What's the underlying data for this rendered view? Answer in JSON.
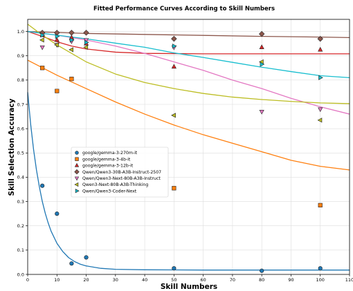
{
  "chart_data": {
    "type": "scatter",
    "title": "Fitted Performance Curves According to Skill Numbers",
    "xlabel": "Skill Numbers",
    "ylabel": "Skill Selection Accuracy",
    "xlim": [
      0,
      110
    ],
    "ylim": [
      0.0,
      1.05
    ],
    "xticks": [
      0,
      10,
      20,
      30,
      40,
      50,
      60,
      70,
      80,
      90,
      100,
      110
    ],
    "yticks": [
      0.0,
      0.1,
      0.2,
      0.3,
      0.4,
      0.5,
      0.6,
      0.7,
      0.8,
      0.9,
      1.0
    ],
    "grid": true,
    "legend_position": "center-left",
    "series": [
      {
        "name": "google/gemma-3-270m-it",
        "color": "#1f77b4",
        "marker": "circle",
        "x": [
          5,
          10,
          15,
          20,
          50,
          80,
          100
        ],
        "y": [
          0.365,
          0.25,
          0.045,
          0.07,
          0.025,
          0.015,
          0.025
        ],
        "fit": [
          [
            0,
            0.75
          ],
          [
            1,
            0.62
          ],
          [
            2,
            0.515
          ],
          [
            3,
            0.43
          ],
          [
            4,
            0.36
          ],
          [
            5,
            0.3
          ],
          [
            6,
            0.252
          ],
          [
            7,
            0.212
          ],
          [
            8,
            0.178
          ],
          [
            10,
            0.128
          ],
          [
            12,
            0.094
          ],
          [
            14,
            0.069
          ],
          [
            16,
            0.053
          ],
          [
            18,
            0.042
          ],
          [
            20,
            0.035
          ],
          [
            25,
            0.025
          ],
          [
            30,
            0.021
          ],
          [
            40,
            0.019
          ],
          [
            60,
            0.018
          ],
          [
            110,
            0.018
          ]
        ]
      },
      {
        "name": "google/gemma-3-4b-it",
        "color": "#ff7f0e",
        "marker": "square",
        "x": [
          5,
          10,
          15,
          50,
          100
        ],
        "y": [
          0.85,
          0.755,
          0.805,
          0.355,
          0.285
        ],
        "fit": [
          [
            0,
            0.882
          ],
          [
            10,
            0.82
          ],
          [
            20,
            0.765
          ],
          [
            30,
            0.71
          ],
          [
            40,
            0.66
          ],
          [
            50,
            0.615
          ],
          [
            60,
            0.575
          ],
          [
            70,
            0.54
          ],
          [
            80,
            0.505
          ],
          [
            90,
            0.47
          ],
          [
            100,
            0.445
          ],
          [
            110,
            0.43
          ]
        ]
      },
      {
        "name": "google/gemma-3-12b-it",
        "color": "#d62728",
        "marker": "triangle-up",
        "x": [
          5,
          10,
          15,
          20,
          50,
          80,
          100
        ],
        "y": [
          0.985,
          0.965,
          0.975,
          0.95,
          0.855,
          0.935,
          0.925
        ],
        "fit": [
          [
            0,
            1.0
          ],
          [
            5,
            0.98
          ],
          [
            10,
            0.958
          ],
          [
            15,
            0.94
          ],
          [
            20,
            0.928
          ],
          [
            30,
            0.915
          ],
          [
            40,
            0.91
          ],
          [
            60,
            0.908
          ],
          [
            110,
            0.908
          ]
        ]
      },
      {
        "name": "Qwen/Qwen3-30B-A3B-Instruct-2507",
        "color": "#8c564b",
        "marker": "diamond",
        "x": [
          5,
          10,
          15,
          20,
          50,
          80,
          100
        ],
        "y": [
          0.995,
          0.995,
          0.995,
          0.995,
          0.97,
          0.99,
          0.97
        ],
        "fit": [
          [
            0,
            1.0
          ],
          [
            20,
            0.992
          ],
          [
            40,
            0.988
          ],
          [
            60,
            0.984
          ],
          [
            80,
            0.98
          ],
          [
            100,
            0.977
          ],
          [
            110,
            0.975
          ]
        ]
      },
      {
        "name": "Qwen/Qwen3-Next-80B-A3B-Instruct",
        "color": "#e377c2",
        "marker": "triangle-down",
        "x": [
          5,
          10,
          15,
          20,
          50,
          80,
          100
        ],
        "y": [
          0.935,
          0.945,
          0.96,
          0.965,
          0.935,
          0.67,
          0.68
        ],
        "fit": [
          [
            0,
            1.0
          ],
          [
            10,
            0.985
          ],
          [
            20,
            0.965
          ],
          [
            30,
            0.94
          ],
          [
            40,
            0.91
          ],
          [
            50,
            0.875
          ],
          [
            60,
            0.84
          ],
          [
            70,
            0.8
          ],
          [
            80,
            0.765
          ],
          [
            90,
            0.725
          ],
          [
            100,
            0.69
          ],
          [
            110,
            0.66
          ]
        ]
      },
      {
        "name": "Qwen3-Next-80B-A3B-Thinking",
        "color": "#bcbd22",
        "marker": "triangle-left",
        "x": [
          5,
          10,
          15,
          20,
          50,
          80,
          100
        ],
        "y": [
          0.965,
          0.945,
          0.925,
          0.935,
          0.655,
          0.875,
          0.635
        ],
        "fit": [
          [
            0,
            1.03
          ],
          [
            5,
            0.985
          ],
          [
            10,
            0.945
          ],
          [
            15,
            0.91
          ],
          [
            20,
            0.875
          ],
          [
            30,
            0.825
          ],
          [
            40,
            0.79
          ],
          [
            50,
            0.765
          ],
          [
            60,
            0.745
          ],
          [
            70,
            0.73
          ],
          [
            80,
            0.72
          ],
          [
            90,
            0.712
          ],
          [
            100,
            0.706
          ],
          [
            110,
            0.703
          ]
        ]
      },
      {
        "name": "Qwen/Qwen3-Coder-Next",
        "color": "#17becf",
        "marker": "triangle-right",
        "x": [
          5,
          10,
          15,
          20,
          50,
          80,
          100
        ],
        "y": [
          0.985,
          0.98,
          0.965,
          0.955,
          0.94,
          0.865,
          0.81
        ],
        "fit": [
          [
            0,
            1.0
          ],
          [
            10,
            0.985
          ],
          [
            20,
            0.97
          ],
          [
            30,
            0.952
          ],
          [
            40,
            0.935
          ],
          [
            50,
            0.912
          ],
          [
            60,
            0.893
          ],
          [
            70,
            0.873
          ],
          [
            80,
            0.853
          ],
          [
            90,
            0.835
          ],
          [
            100,
            0.818
          ],
          [
            110,
            0.81
          ]
        ]
      }
    ]
  }
}
